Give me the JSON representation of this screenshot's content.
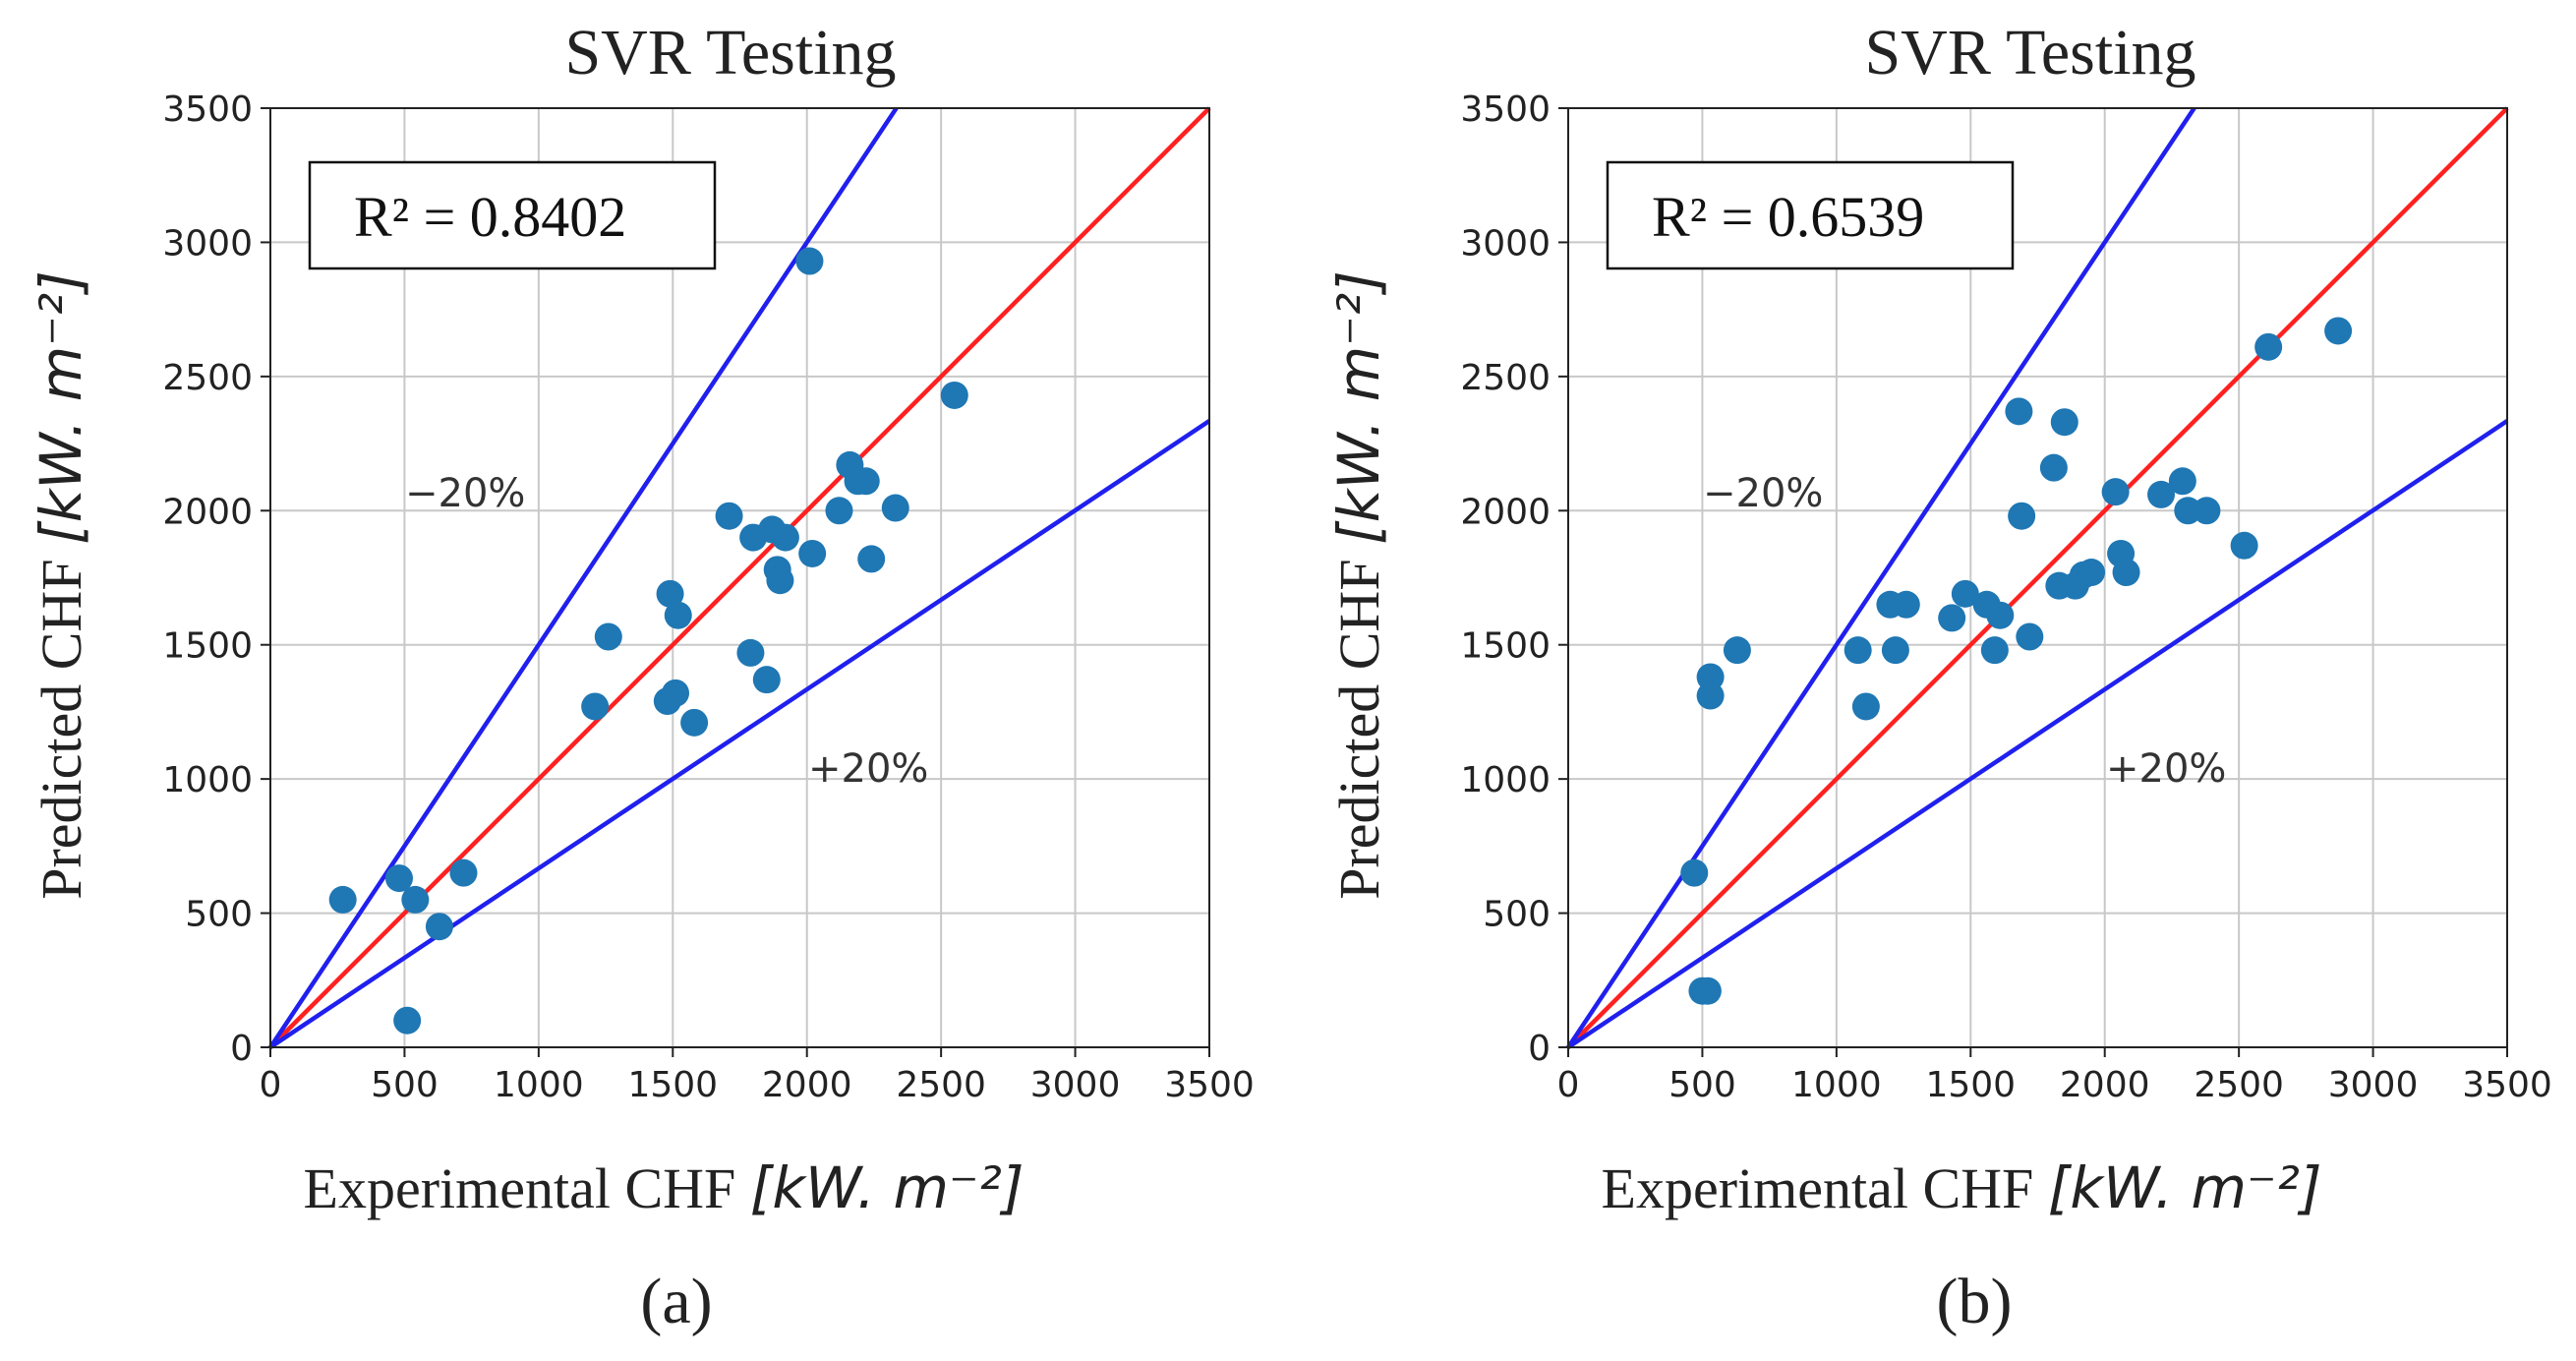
{
  "chart_data": [
    {
      "type": "scatter",
      "title": "SVR Testing",
      "xlabel": "Experimental CHF",
      "ylabel": "Predicted CHF",
      "unit": "[kW. m⁻²]",
      "xlim": [
        0,
        3500
      ],
      "ylim": [
        0,
        3500
      ],
      "ticks": [
        "0",
        "500",
        "1000",
        "1500",
        "2000",
        "2500",
        "3000",
        "3500"
      ],
      "grid": true,
      "r2_label": "R² = 0.8402",
      "band_upper_label": "−20%",
      "band_lower_label": "+20%",
      "reference_lines": [
        {
          "name": "y = x",
          "slope": 1.0,
          "color": "#ff2020"
        },
        {
          "name": "-20%",
          "slope": 1.5,
          "color": "#2020ee"
        },
        {
          "name": "+20%",
          "slope": 0.667,
          "color": "#2020ee"
        }
      ],
      "marker_color": "#1f77b4",
      "points": [
        [
          270,
          550
        ],
        [
          480,
          630
        ],
        [
          510,
          100
        ],
        [
          540,
          550
        ],
        [
          630,
          450
        ],
        [
          720,
          650
        ],
        [
          1210,
          1270
        ],
        [
          1260,
          1530
        ],
        [
          1480,
          1290
        ],
        [
          1490,
          1690
        ],
        [
          1510,
          1320
        ],
        [
          1520,
          1610
        ],
        [
          1580,
          1210
        ],
        [
          1710,
          1980
        ],
        [
          1790,
          1470
        ],
        [
          1800,
          1900
        ],
        [
          1850,
          1370
        ],
        [
          1870,
          1930
        ],
        [
          1890,
          1780
        ],
        [
          1900,
          1740
        ],
        [
          1920,
          1900
        ],
        [
          2010,
          2930
        ],
        [
          2020,
          1840
        ],
        [
          2120,
          2000
        ],
        [
          2160,
          2170
        ],
        [
          2190,
          2110
        ],
        [
          2220,
          2110
        ],
        [
          2240,
          1820
        ],
        [
          2330,
          2010
        ],
        [
          2550,
          2430
        ]
      ],
      "panel_label": "(a)"
    },
    {
      "type": "scatter",
      "title": "SVR Testing",
      "xlabel": "Experimental CHF",
      "ylabel": "Predicted CHF",
      "unit": "[kW. m⁻²]",
      "xlim": [
        0,
        3500
      ],
      "ylim": [
        0,
        3500
      ],
      "ticks": [
        "0",
        "500",
        "1000",
        "1500",
        "2000",
        "2500",
        "3000",
        "3500"
      ],
      "grid": true,
      "r2_label": "R² = 0.6539",
      "band_upper_label": "−20%",
      "band_lower_label": "+20%",
      "reference_lines": [
        {
          "name": "y = x",
          "slope": 1.0,
          "color": "#ff2020"
        },
        {
          "name": "-20%",
          "slope": 1.5,
          "color": "#2020ee"
        },
        {
          "name": "+20%",
          "slope": 0.667,
          "color": "#2020ee"
        }
      ],
      "marker_color": "#1f77b4",
      "points": [
        [
          470,
          650
        ],
        [
          500,
          210
        ],
        [
          520,
          210
        ],
        [
          530,
          1380
        ],
        [
          530,
          1310
        ],
        [
          630,
          1480
        ],
        [
          1080,
          1480
        ],
        [
          1110,
          1270
        ],
        [
          1200,
          1650
        ],
        [
          1220,
          1480
        ],
        [
          1260,
          1650
        ],
        [
          1430,
          1600
        ],
        [
          1480,
          1690
        ],
        [
          1560,
          1650
        ],
        [
          1590,
          1480
        ],
        [
          1610,
          1610
        ],
        [
          1680,
          2370
        ],
        [
          1690,
          1980
        ],
        [
          1720,
          1530
        ],
        [
          1810,
          2160
        ],
        [
          1830,
          1720
        ],
        [
          1850,
          2330
        ],
        [
          1890,
          1720
        ],
        [
          1920,
          1760
        ],
        [
          1950,
          1770
        ],
        [
          2040,
          2070
        ],
        [
          2060,
          1840
        ],
        [
          2080,
          1770
        ],
        [
          2210,
          2060
        ],
        [
          2290,
          2110
        ],
        [
          2310,
          2000
        ],
        [
          2380,
          2000
        ],
        [
          2520,
          1870
        ],
        [
          2610,
          2610
        ],
        [
          2870,
          2670
        ]
      ],
      "panel_label": "(b)"
    }
  ]
}
